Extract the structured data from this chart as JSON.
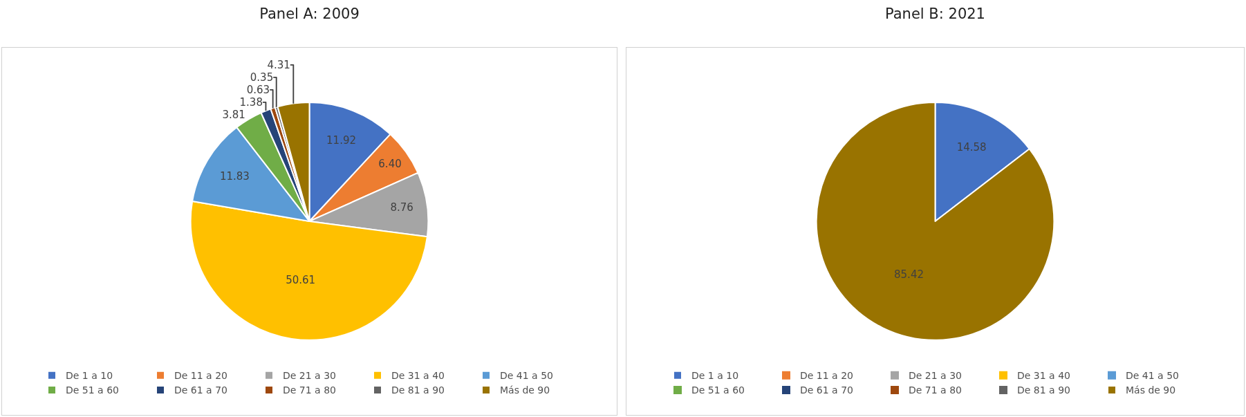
{
  "chart_data": [
    {
      "type": "pie",
      "title": "Panel A: 2009",
      "categories": [
        "De 1 a 10",
        "De 11 a 20",
        "De 21 a 30",
        "De 31 a 40",
        "De 41 a 50",
        "De 51 a 60",
        "De 61 a 70",
        "De 71 a 80",
        "De 81 a 90",
        "Más de 90"
      ],
      "values": [
        11.92,
        6.4,
        8.76,
        50.61,
        11.83,
        3.81,
        1.38,
        0.63,
        0.35,
        4.31
      ],
      "value_labels": [
        "11.92",
        "6.40",
        "8.76",
        "50.61",
        "11.83",
        "3.81",
        "1.38",
        "0.63",
        "0.35",
        "4.31"
      ],
      "colors": [
        "#4472c4",
        "#ed7d31",
        "#a5a5a5",
        "#ffc000",
        "#5b9bd5",
        "#70ad47",
        "#264478",
        "#9e480e",
        "#636363",
        "#997300"
      ],
      "legend": "bottom"
    },
    {
      "type": "pie",
      "title": "Panel B: 2021",
      "categories": [
        "De 1 a 10",
        "De 11 a 20",
        "De 21 a 30",
        "De 31 a 40",
        "De 41 a 50",
        "De 51 a 60",
        "De 61 a 70",
        "De 71 a 80",
        "De 81 a 90",
        "Más de 90"
      ],
      "values": [
        14.58,
        0,
        0,
        0,
        0,
        0,
        0,
        0,
        0,
        85.42
      ],
      "value_labels": [
        "14.58",
        null,
        null,
        null,
        null,
        null,
        null,
        null,
        null,
        "85.42"
      ],
      "colors": [
        "#4472c4",
        "#ed7d31",
        "#a5a5a5",
        "#ffc000",
        "#5b9bd5",
        "#70ad47",
        "#264478",
        "#9e480e",
        "#636363",
        "#997300"
      ],
      "legend": "bottom"
    }
  ]
}
